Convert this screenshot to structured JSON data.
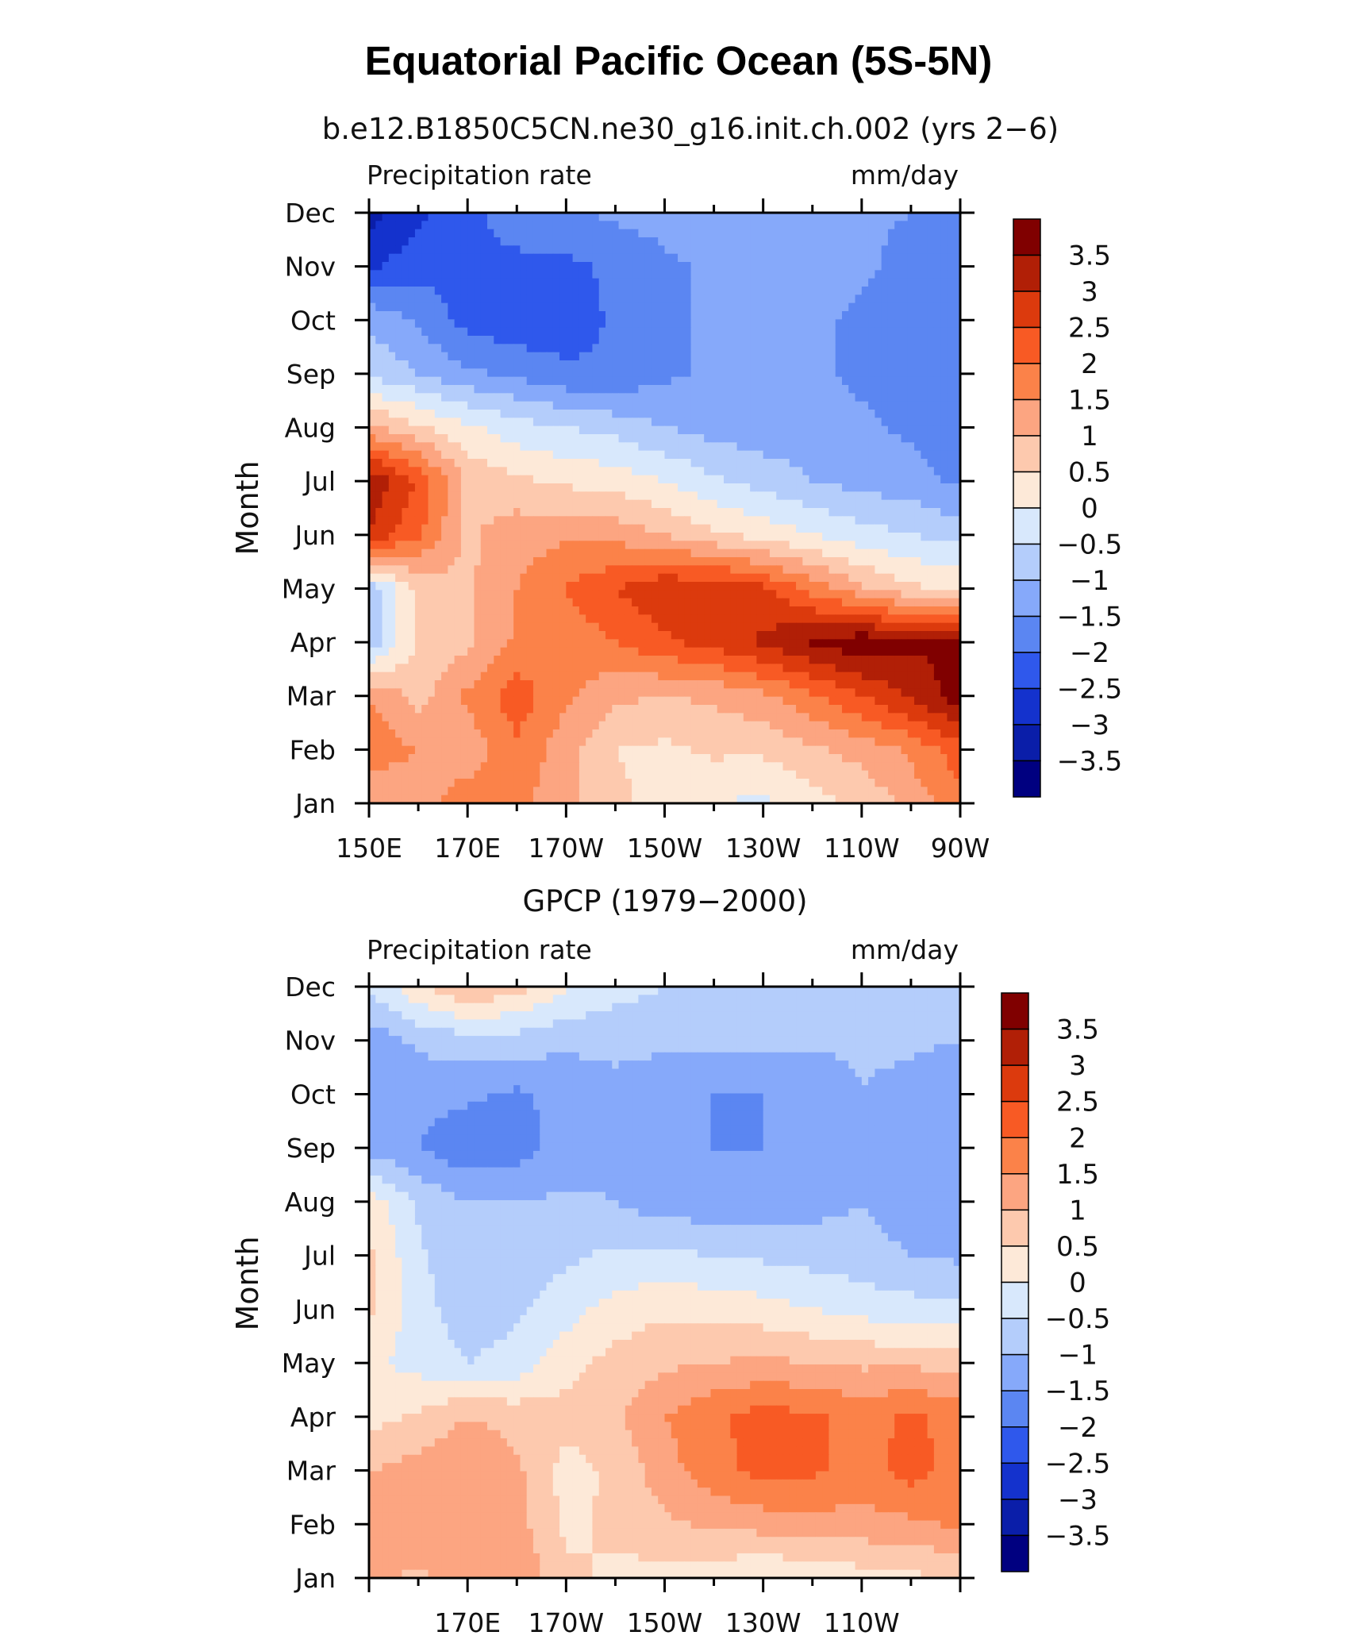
{
  "title": "Equatorial Pacific Ocean (5S-5N)",
  "colorbar": {
    "levels": [
      "3.5",
      "3",
      "2.5",
      "2",
      "1.5",
      "1",
      "0.5",
      "0",
      "−0.5",
      "−1",
      "−1.5",
      "−2",
      "−2.5",
      "−3",
      "−3.5"
    ],
    "colors": [
      "#800000",
      "#b11f06",
      "#dc3a0d",
      "#f85a24",
      "#fb8249",
      "#fca581",
      "#fdc9ae",
      "#fde9d8",
      "#d8e8fc",
      "#b4cdfb",
      "#86a9fa",
      "#5b86f2",
      "#2f58ec",
      "#1432cd",
      "#0a1ea9",
      "#000080"
    ]
  },
  "chart_data": [
    {
      "type": "heatmap",
      "title": "b.e12.B1850C5CN.ne30_g16.init.ch.002 (yrs 2−6)",
      "left_label": "Precipitation rate",
      "right_label": "mm/day",
      "xlabel": "",
      "ylabel": "Month",
      "x_tick_labels": [
        "150E",
        "170E",
        "170W",
        "150W",
        "130W",
        "110W",
        "90W"
      ],
      "y_tick_labels": [
        "Jan",
        "Feb",
        "Mar",
        "Apr",
        "May",
        "Jun",
        "Jul",
        "Aug",
        "Sep",
        "Oct",
        "Nov",
        "Dec"
      ],
      "x_range_deg_east": [
        150,
        270
      ],
      "x": [
        150,
        160,
        170,
        180,
        190,
        200,
        210,
        220,
        230,
        240,
        250,
        260,
        270
      ],
      "y": [
        "Jan",
        "Feb",
        "Mar",
        "Apr",
        "May",
        "Jun",
        "Jul",
        "Aug",
        "Sep",
        "Oct",
        "Nov",
        "Dec"
      ],
      "z": [
        [
          1.0,
          1.2,
          1.8,
          1.6,
          1.2,
          0.6,
          0.3,
          0.0,
          -0.1,
          0.3,
          0.6,
          1.2,
          1.8
        ],
        [
          1.8,
          1.5,
          1.2,
          1.9,
          1.2,
          0.5,
          0.4,
          0.6,
          0.6,
          0.9,
          1.2,
          1.6,
          2.3
        ],
        [
          1.5,
          0.8,
          1.6,
          2.3,
          1.6,
          1.1,
          1.0,
          1.1,
          1.4,
          1.9,
          2.5,
          3.1,
          3.8
        ],
        [
          -0.9,
          0.6,
          0.9,
          1.6,
          1.7,
          2.0,
          2.4,
          2.7,
          3.1,
          3.6,
          3.9,
          3.6,
          3.5
        ],
        [
          -0.8,
          0.6,
          0.9,
          1.5,
          2.0,
          2.5,
          2.9,
          2.9,
          2.6,
          1.8,
          1.1,
          0.6,
          0.4
        ],
        [
          2.9,
          2.1,
          0.9,
          1.3,
          1.4,
          1.3,
          1.0,
          0.6,
          0.3,
          0.0,
          -0.3,
          -0.5,
          -0.7
        ],
        [
          3.5,
          2.4,
          0.9,
          0.6,
          0.4,
          0.3,
          0.0,
          -0.4,
          -0.7,
          -1.0,
          -1.2,
          -1.3,
          -1.6
        ],
        [
          1.1,
          0.6,
          0.1,
          -0.3,
          -0.5,
          -0.7,
          -1.0,
          -1.2,
          -1.3,
          -1.3,
          -1.4,
          -1.6,
          -1.8
        ],
        [
          -0.6,
          -1.0,
          -1.4,
          -1.6,
          -1.9,
          -1.9,
          -1.6,
          -1.4,
          -1.4,
          -1.4,
          -1.6,
          -1.8,
          -2.0
        ],
        [
          -1.1,
          -1.6,
          -2.2,
          -2.4,
          -2.3,
          -1.9,
          -1.6,
          -1.4,
          -1.4,
          -1.4,
          -1.6,
          -1.9,
          -2.0
        ],
        [
          -2.6,
          -2.2,
          -2.1,
          -2.1,
          -2.1,
          -1.9,
          -1.6,
          -1.4,
          -1.3,
          -1.3,
          -1.4,
          -1.7,
          -1.9
        ],
        [
          -3.2,
          -2.6,
          -2.1,
          -1.8,
          -1.6,
          -1.4,
          -1.3,
          -1.3,
          -1.3,
          -1.3,
          -1.4,
          -1.5,
          -1.6
        ]
      ]
    },
    {
      "type": "heatmap",
      "title": "GPCP (1979−2000)",
      "left_label": "Precipitation rate",
      "right_label": "mm/day",
      "xlabel": "",
      "ylabel": "Month",
      "x_tick_labels": [
        "170E",
        "170W",
        "150W",
        "130W",
        "110W"
      ],
      "y_tick_labels": [
        "Jan",
        "Feb",
        "Mar",
        "Apr",
        "May",
        "Jun",
        "Jul",
        "Aug",
        "Sep",
        "Oct",
        "Nov",
        "Dec"
      ],
      "x_range_deg_east": [
        150,
        270
      ],
      "x": [
        150,
        160,
        170,
        180,
        190,
        200,
        210,
        220,
        230,
        240,
        250,
        260,
        270
      ],
      "y": [
        "Jan",
        "Feb",
        "Mar",
        "Apr",
        "May",
        "Jun",
        "Jul",
        "Aug",
        "Sep",
        "Oct",
        "Nov",
        "Dec"
      ],
      "z": [
        [
          1.1,
          0.9,
          1.2,
          1.4,
          0.6,
          0.4,
          0.3,
          0.2,
          0.0,
          0.1,
          0.3,
          0.4,
          0.5
        ],
        [
          1.1,
          1.5,
          1.3,
          1.2,
          0.4,
          0.6,
          0.9,
          1.1,
          1.2,
          1.3,
          1.3,
          1.4,
          1.6
        ],
        [
          1.0,
          1.2,
          1.5,
          1.1,
          0.3,
          0.6,
          1.3,
          1.8,
          2.2,
          2.1,
          1.8,
          2.2,
          1.8
        ],
        [
          0.3,
          0.6,
          1.0,
          0.8,
          0.7,
          0.9,
          1.5,
          1.9,
          2.2,
          2.1,
          1.8,
          2.1,
          1.8
        ],
        [
          0.1,
          -0.2,
          -0.5,
          -0.3,
          0.3,
          0.7,
          0.9,
          1.0,
          1.1,
          1.0,
          0.9,
          0.9,
          0.8
        ],
        [
          0.6,
          -0.3,
          -0.8,
          -0.6,
          -0.2,
          0.2,
          0.4,
          0.3,
          0.2,
          0.0,
          -0.2,
          -0.3,
          -0.4
        ],
        [
          0.6,
          -0.4,
          -0.9,
          -0.8,
          -0.6,
          -0.4,
          -0.4,
          -0.5,
          -0.6,
          -0.7,
          -0.8,
          -1.0,
          -1.1
        ],
        [
          0.3,
          -0.6,
          -1.0,
          -1.0,
          -0.9,
          -1.0,
          -1.3,
          -1.3,
          -1.3,
          -1.2,
          -1.0,
          -1.3,
          -1.5
        ],
        [
          -1.2,
          -1.5,
          -1.9,
          -1.7,
          -1.3,
          -1.1,
          -1.4,
          -1.5,
          -1.5,
          -1.4,
          -1.0,
          -1.2,
          -1.4
        ],
        [
          -1.2,
          -1.3,
          -1.4,
          -1.6,
          -1.3,
          -1.1,
          -1.3,
          -1.5,
          -1.5,
          -1.5,
          -1.0,
          -1.2,
          -1.4
        ],
        [
          -1.3,
          -0.9,
          -0.7,
          -0.7,
          -0.9,
          -0.9,
          -0.9,
          -0.9,
          -0.9,
          -0.9,
          -0.9,
          -0.9,
          -1.0
        ],
        [
          -0.4,
          0.4,
          1.0,
          0.7,
          0.1,
          -0.3,
          -0.5,
          -0.7,
          -0.8,
          -0.8,
          -0.8,
          -0.8,
          -0.8
        ]
      ]
    }
  ]
}
